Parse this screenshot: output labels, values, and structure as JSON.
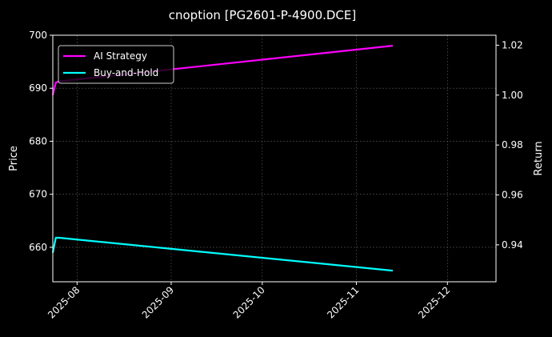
{
  "chart_data": {
    "type": "line",
    "title": "cnoption [PG2601-P-4900.DCE]",
    "ylabel": "Price",
    "y2label": "Return",
    "ylim": [
      653.5,
      700
    ],
    "y2lim": [
      0.9252,
      1.024
    ],
    "xlim": [
      "2025-07-24",
      "2025-12-17"
    ],
    "x_ticks": [
      "2025-08",
      "2025-09",
      "2025-10",
      "2025-11",
      "2025-12"
    ],
    "y_ticks": [
      660,
      670,
      680,
      690,
      700
    ],
    "y2_ticks": [
      "0.94",
      "0.96",
      "0.98",
      "1.00",
      "1.02"
    ],
    "grid": true,
    "legend_position": "top-left",
    "series": [
      {
        "name": "AI Strategy",
        "axis": "y2",
        "color": "#ff00ff",
        "points": [
          [
            "2025-07-24",
            1.0
          ],
          [
            "2025-07-25",
            1.005
          ],
          [
            "2025-07-26",
            1.0055
          ],
          [
            "2025-11-13",
            1.0198
          ]
        ]
      },
      {
        "name": "Buy-and-Hold",
        "axis": "y",
        "color": "#00ffff",
        "points": [
          [
            "2025-07-24",
            659.0
          ],
          [
            "2025-07-25",
            661.8
          ],
          [
            "2025-07-26",
            661.8
          ],
          [
            "2025-11-13",
            655.6
          ]
        ]
      }
    ]
  }
}
